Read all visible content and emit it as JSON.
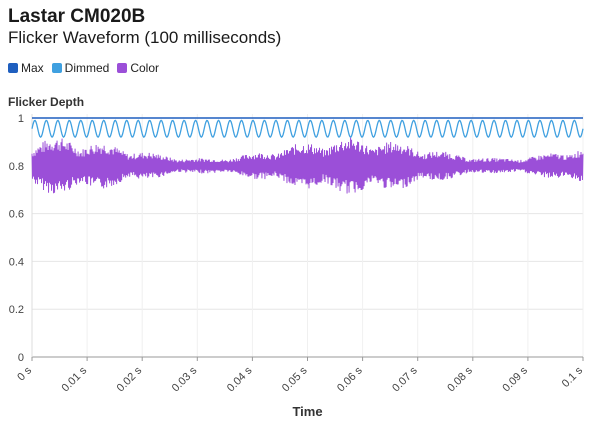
{
  "header": {
    "title": "Lastar CM020B",
    "subtitle": "Flicker Waveform (100 milliseconds)"
  },
  "legend": [
    {
      "label": "Max",
      "color": "#1f5fbf"
    },
    {
      "label": "Dimmed",
      "color": "#3fa0e0"
    },
    {
      "label": "Color",
      "color": "#9b4fd8"
    }
  ],
  "chart_data": {
    "type": "line",
    "title": "Lastar CM020B",
    "subtitle": "Flicker Waveform (100 milliseconds)",
    "xlabel": "Time",
    "ylabel": "Flicker Depth",
    "xlim": [
      0,
      0.1
    ],
    "ylim": [
      0,
      1
    ],
    "x_ticks": [
      "0 s",
      "0.01 s",
      "0.02 s",
      "0.03 s",
      "0.04 s",
      "0.05 s",
      "0.06 s",
      "0.07 s",
      "0.08 s",
      "0.09 s",
      "0.1 s"
    ],
    "y_ticks": [
      "0",
      "0.2",
      "0.4",
      "0.6",
      "0.8",
      "1"
    ],
    "grid": true,
    "legend_position": "top-left",
    "series": [
      {
        "name": "Max",
        "color": "#1f5fbf",
        "level": 1.0
      },
      {
        "name": "Dimmed",
        "color": "#3fa0e0",
        "center": 0.955,
        "amplitude": 0.035,
        "cycles": 48
      },
      {
        "name": "Color",
        "color": "#9b4fd8",
        "center": 0.8,
        "amplitude_range": [
          0.01,
          0.12
        ]
      }
    ]
  }
}
